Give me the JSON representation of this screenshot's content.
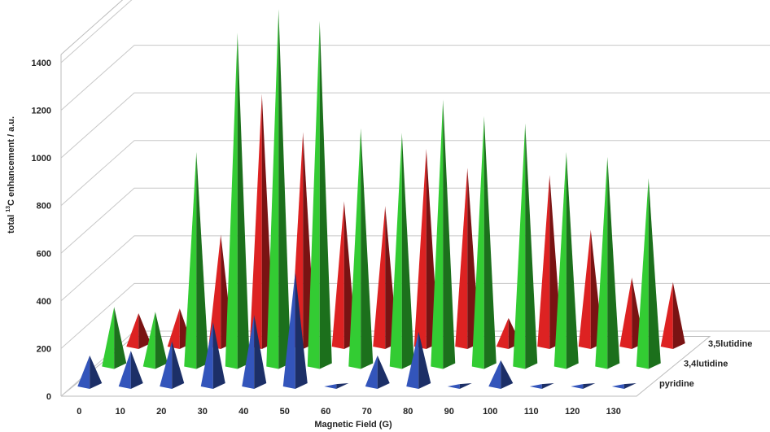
{
  "chart_data": {
    "type": "bar",
    "style": "3d-cone",
    "xlabel": "Magnetic  Field (G)",
    "ylabel_prefix": "total ",
    "ylabel_sup": "13",
    "ylabel_suffix": "C enhancement / a.u.",
    "yticks": [
      "0",
      "200",
      "400",
      "600",
      "800",
      "1000",
      "1200",
      "1400"
    ],
    "ylim": [
      0,
      1400
    ],
    "grid": true,
    "categories": [
      "0",
      "10",
      "20",
      "30",
      "40",
      "50",
      "60",
      "70",
      "80",
      "90",
      "100",
      "110",
      "120",
      "130"
    ],
    "series": [
      {
        "name": "pyridine",
        "color": "#3355bb",
        "values": [
          130,
          150,
          190,
          270,
          300,
          480,
          10,
          130,
          230,
          10,
          110,
          10,
          10,
          10
        ]
      },
      {
        "name": "3,4lutidine",
        "color": "#33cc33",
        "values": [
          250,
          230,
          900,
          1400,
          1500,
          1450,
          1000,
          980,
          1120,
          1050,
          1020,
          900,
          880,
          790
        ]
      },
      {
        "name": "3,5lutidine",
        "color": "#dd2222",
        "values": [
          140,
          160,
          470,
          1060,
          900,
          610,
          590,
          830,
          750,
          120,
          720,
          490,
          290,
          270
        ]
      }
    ],
    "depth_labels": [
      "pyridine",
      "3,4lutidine",
      "3,5lutidine"
    ]
  }
}
